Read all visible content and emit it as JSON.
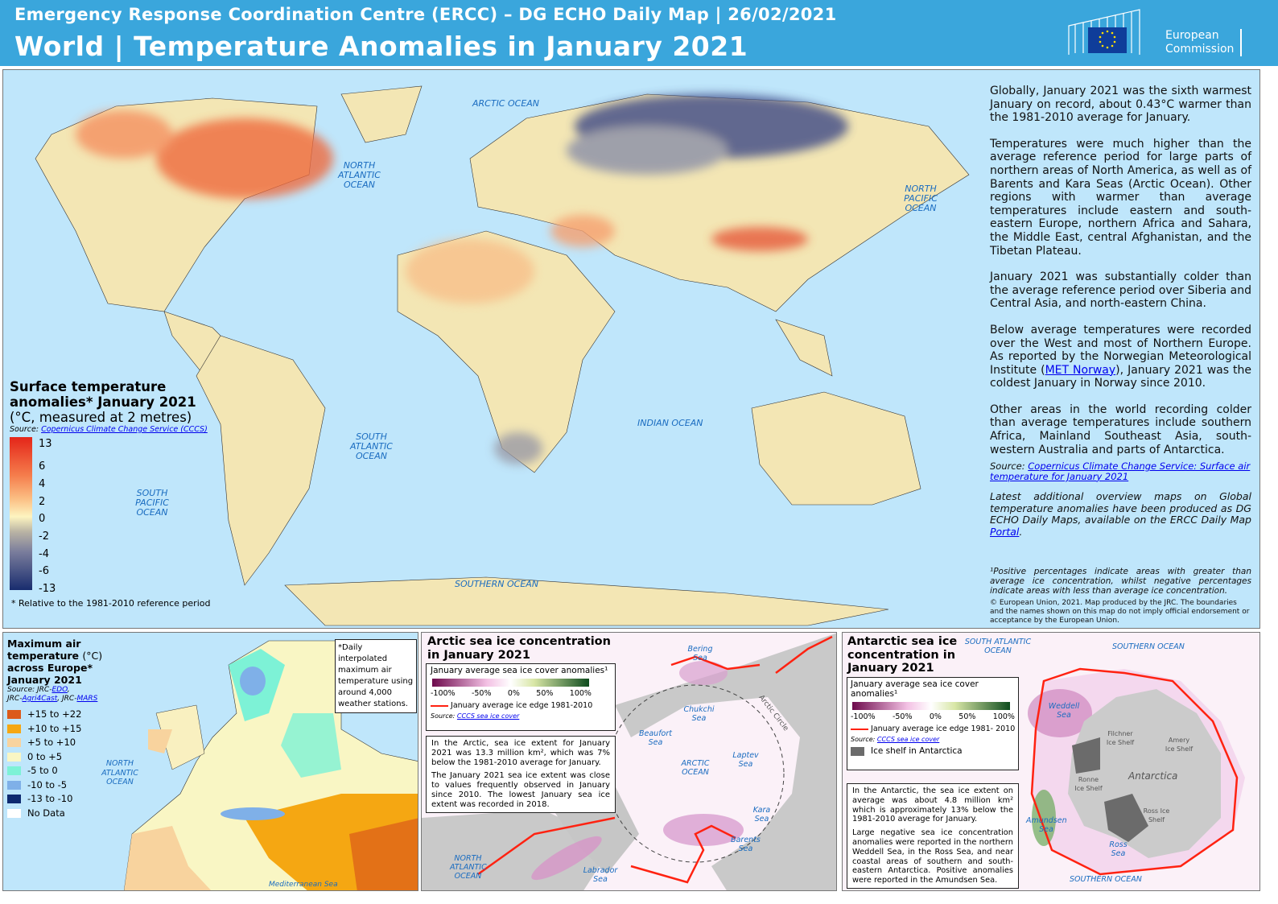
{
  "header": {
    "subtitle": "Emergency Response Coordination Centre (ERCC) – DG ECHO Daily Map | 26/02/2021",
    "title": "World | Temperature Anomalies in January 2021",
    "logo_text": "European Commission"
  },
  "world": {
    "oceans": [
      "ARCTIC OCEAN",
      "NORTH ATLANTIC OCEAN",
      "NORTH PACIFIC OCEAN",
      "SOUTH ATLANTIC OCEAN",
      "SOUTH PACIFIC OCEAN",
      "INDIAN OCEAN",
      "SOUTHERN OCEAN"
    ],
    "legend": {
      "title": "Surface temperature anomalies*  January 2021",
      "units": "(°C, measured at 2 metres)",
      "source_label": "Source:",
      "source_link": "Copernicus Climate Change Service (CCCS)",
      "ticks": [
        "13",
        "6",
        "4",
        "2",
        "0",
        "-2",
        "-4",
        "-6",
        "-13"
      ],
      "footnote": "* Relative to the 1981-2010 reference period"
    },
    "text": {
      "p1": "Globally, January 2021 was the sixth warmest January on record, about 0.43°C warmer than the 1981-2010 average for January.",
      "p2": "Temperatures were much higher than the average reference period for large parts of northern areas of North America, as well as of Barents and Kara Seas (Arctic Ocean). Other regions with warmer than average temperatures include eastern and south-eastern Europe, northern Africa and Sahara, the Middle East, central Afghanistan, and the Tibetan Plateau.",
      "p3": "January 2021 was substantially colder than the average reference period over Siberia and Central Asia, and north-eastern China.",
      "p4a": "Below average temperatures were recorded over the West and most of Northern Europe. As reported by the Norwegian Meteorological Institute (",
      "p4link": "MET Norway",
      "p4b": "), January 2021 was the coldest January in Norway since 2010.",
      "p5": "Other areas in the world recording colder than average temperatures include southern Africa, Mainland Southeast Asia, south-western Australia and parts of Antarctica.",
      "source_label": "Source: ",
      "source_link": "Copernicus Climate Change Service: Surface air temperature for January 2021",
      "latest": "Latest additional overview maps on Global temperature anomalies have been produced as DG ECHO Daily Maps, available on the ERCC Daily Map ",
      "latest_link": "Portal",
      "footnote": "¹Positive percentages indicate areas with greater than average ice concentration, whilst  negative percentages indicate areas with less than average ice concentration.",
      "copyright": "© European Union, 2021. Map produced by the JRC. The boundaries and the names shown on this map do not imply official endorsement or acceptance by the European Union."
    }
  },
  "europe": {
    "title": "Maximum air temperature",
    "title_unit": "(°C)",
    "title2": "across Europe*",
    "title3": "January 2021",
    "source": "Source:  JRC-",
    "src1": "EDO",
    "src2": "Agri4Cast",
    "src3": "MARS",
    "legend": [
      {
        "label": "+15 to +22",
        "color": "#dc5a1a"
      },
      {
        "label": "+10 to +15",
        "color": "#f5a712"
      },
      {
        "label": "+5 to +10",
        "color": "#f8d39e"
      },
      {
        "label": "0 to +5",
        "color": "#f9f6c4"
      },
      {
        "label": "-5 to 0",
        "color": "#7df2d6"
      },
      {
        "label": "-10 to -5",
        "color": "#7fb0e8"
      },
      {
        "label": "-13 to -10",
        "color": "#0e2a70"
      },
      {
        "label": "No Data",
        "color": "#ffffff"
      }
    ],
    "note": "*Daily interpolated maximum air temperature using around 4,000 weather stations.",
    "ocean": "NORTH ATLANTIC OCEAN",
    "sea": "Mediterranean Sea"
  },
  "arctic": {
    "title": "Arctic sea ice concentration in January 2021",
    "legend_title": "January average sea ice cover anomalies¹",
    "scale": [
      "-100%",
      "-50%",
      "0%",
      "50%",
      "100%"
    ],
    "edge": "January average ice edge 1981-2010",
    "source_label": "Source:",
    "source_link": "CCCS sea ice cover",
    "p1": "In the Arctic, sea ice extent for January 2021 was 13.3 million km², which  was 7% below the 1981-2010 average for January.",
    "p2": "The January 2021 sea ice extent was close to values frequently observed in January since 2010. The lowest January sea ice extent was recorded in 2018.",
    "seas": [
      "Bering Sea",
      "Chukchi Sea",
      "Beaufort Sea",
      "ARCTIC OCEAN",
      "Laptev Sea",
      "Kara Sea",
      "Barents Sea",
      "Labrador Sea",
      "NORTH ATLANTIC OCEAN"
    ],
    "circle": "Arctic Circle"
  },
  "antarctic": {
    "title": "Antarctic sea ice concentration in January 2021",
    "legend_title": "January average sea ice cover anomalies¹",
    "scale": [
      "-100%",
      "-50%",
      "0%",
      "50%",
      "100%"
    ],
    "edge": "January average ice edge 1981- 2010",
    "source_label": "Source:",
    "source_link": "CCCS sea ice cover",
    "shelf": "Ice shelf in Antarctica",
    "p1": "In the Antarctic, the sea ice extent on average was about 4.8 million km² which is approximately 13%  below the 1981-2010 average for January.",
    "p2": "Large negative sea ice concentration anomalies were reported in the northern Weddell Sea, in the Ross Sea, and near coastal areas of southern and south-eastern Antarctica. Positive anomalies were reported in the Amundsen Sea.",
    "labels": [
      "SOUTH ATLANTIC OCEAN",
      "SOUTHERN OCEAN",
      "Weddell Sea",
      "Filchner Ice Shelf",
      "Amery Ice Shelf",
      "Antarctica",
      "Ronne Ice Shelf",
      "Ross Ice Shelf",
      "Amundsen Sea",
      "Ross Sea",
      "SOUTHERN OCEAN"
    ]
  }
}
